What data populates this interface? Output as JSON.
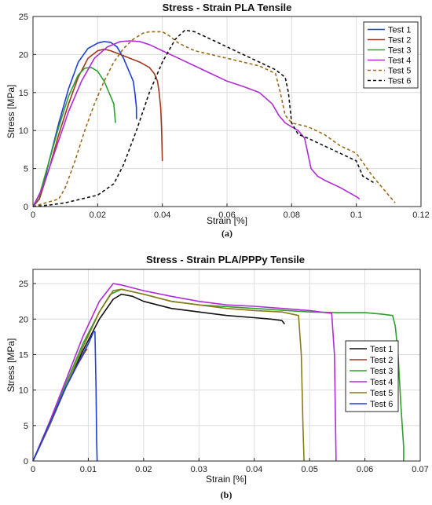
{
  "chart_data": [
    {
      "type": "line",
      "title": "Stress - Strain PLA Tensile",
      "xlabel": "Strain [%]",
      "ylabel": "Stress [MPa]",
      "caption": "(a)",
      "xlim": [
        0,
        0.12
      ],
      "ylim": [
        0,
        25
      ],
      "xticks": [
        0,
        0.02,
        0.04,
        0.06,
        0.08,
        0.1,
        0.12
      ],
      "xtick_labels": [
        "0",
        "0.02",
        "0.04",
        "0.06",
        "0.08",
        "0.1",
        "0.12"
      ],
      "yticks": [
        0,
        5,
        10,
        15,
        20,
        25
      ],
      "ytick_labels": [
        "0",
        "5",
        "10",
        "15",
        "20",
        "25"
      ],
      "grid": true,
      "legend_position": "top-right",
      "series": [
        {
          "name": "Test 1",
          "color": "#1f3fd1",
          "dash": "solid",
          "x": [
            0,
            0.001,
            0.002,
            0.003,
            0.005,
            0.008,
            0.011,
            0.014,
            0.017,
            0.02,
            0.022,
            0.024,
            0.026,
            0.028,
            0.029,
            0.03,
            0.031,
            0.0315,
            0.032,
            0.032
          ],
          "y": [
            0,
            0.5,
            1.0,
            2.5,
            6.0,
            11.0,
            15.5,
            19.0,
            20.8,
            21.5,
            21.7,
            21.6,
            21.0,
            19.5,
            18.5,
            17.5,
            16.5,
            15.0,
            13.0,
            11.5
          ]
        },
        {
          "name": "Test 2",
          "color": "#a0361c",
          "dash": "solid",
          "x": [
            0,
            0.002,
            0.005,
            0.008,
            0.011,
            0.014,
            0.017,
            0.02,
            0.022,
            0.024,
            0.027,
            0.03,
            0.033,
            0.036,
            0.0375,
            0.0385,
            0.039,
            0.0395,
            0.0398,
            0.04
          ],
          "y": [
            0,
            1.0,
            5.0,
            9.5,
            13.5,
            17.0,
            19.5,
            20.5,
            20.7,
            20.5,
            20.0,
            19.5,
            19.0,
            18.3,
            17.5,
            16.5,
            15.0,
            13.0,
            10.0,
            6.0
          ]
        },
        {
          "name": "Test 3",
          "color": "#2ca02c",
          "dash": "solid",
          "x": [
            0,
            0.002,
            0.005,
            0.008,
            0.011,
            0.014,
            0.016,
            0.018,
            0.02,
            0.022,
            0.023,
            0.024,
            0.025,
            0.0255
          ],
          "y": [
            0,
            1.5,
            6.0,
            10.5,
            14.5,
            17.3,
            18.2,
            18.3,
            17.8,
            16.5,
            15.5,
            14.5,
            13.5,
            11.0
          ]
        },
        {
          "name": "Test 4",
          "color": "#b02bd6",
          "dash": "solid",
          "x": [
            0,
            0.003,
            0.007,
            0.011,
            0.015,
            0.019,
            0.023,
            0.027,
            0.03,
            0.033,
            0.036,
            0.04,
            0.045,
            0.05,
            0.055,
            0.06,
            0.065,
            0.07,
            0.074,
            0.076,
            0.078,
            0.08,
            0.082,
            0.084,
            0.085,
            0.086,
            0.088,
            0.09,
            0.095,
            0.1,
            0.101
          ],
          "y": [
            0,
            2.5,
            7.5,
            12.5,
            16.5,
            19.5,
            21.0,
            21.7,
            21.8,
            21.7,
            21.3,
            20.5,
            19.5,
            18.5,
            17.5,
            16.5,
            15.8,
            15.0,
            13.5,
            12.0,
            11.0,
            10.5,
            10.0,
            9.0,
            7.0,
            5.0,
            4.0,
            3.5,
            2.5,
            1.3,
            1.0
          ]
        },
        {
          "name": "Test 5",
          "color": "#9a6a1a",
          "dash": "4,3",
          "x": [
            0,
            0.004,
            0.008,
            0.01,
            0.013,
            0.016,
            0.019,
            0.022,
            0.025,
            0.028,
            0.031,
            0.034,
            0.036,
            0.038,
            0.04,
            0.042,
            0.045,
            0.05,
            0.055,
            0.06,
            0.065,
            0.07,
            0.075,
            0.0765,
            0.078,
            0.08,
            0.085,
            0.09,
            0.095,
            0.1,
            0.105,
            0.11,
            0.112
          ],
          "y": [
            0,
            0.5,
            1.0,
            2.5,
            6.0,
            10.0,
            13.5,
            16.5,
            19.0,
            20.8,
            22.0,
            22.8,
            23.0,
            23.0,
            23.0,
            22.5,
            21.5,
            20.5,
            20.0,
            19.5,
            19.0,
            18.5,
            17.5,
            15.0,
            12.0,
            11.0,
            10.5,
            9.5,
            8.0,
            7.0,
            4.0,
            1.5,
            0.5
          ]
        },
        {
          "name": "Test 6",
          "color": "#111111",
          "dash": "4,3",
          "x": [
            0,
            0.005,
            0.01,
            0.015,
            0.02,
            0.025,
            0.028,
            0.032,
            0.036,
            0.04,
            0.044,
            0.047,
            0.05,
            0.055,
            0.06,
            0.065,
            0.07,
            0.075,
            0.078,
            0.079,
            0.08,
            0.082,
            0.085,
            0.09,
            0.095,
            0.1,
            0.102,
            0.104,
            0.106
          ],
          "y": [
            0,
            0.2,
            0.5,
            1.0,
            1.5,
            3.0,
            5.5,
            10.0,
            15.0,
            19.0,
            22.0,
            23.2,
            23.0,
            22.0,
            21.0,
            20.0,
            19.0,
            18.0,
            17.0,
            15.0,
            11.0,
            9.5,
            9.0,
            8.0,
            7.0,
            6.0,
            4.0,
            3.5,
            3.0
          ]
        }
      ]
    },
    {
      "type": "line",
      "title": "Stress - Strain PLA/PPPy Tensile",
      "xlabel": "Strain [%]",
      "ylabel": "Stress [MPa]",
      "caption": "(b)",
      "xlim": [
        0,
        0.07
      ],
      "ylim": [
        0,
        27
      ],
      "xticks": [
        0,
        0.01,
        0.02,
        0.03,
        0.04,
        0.05,
        0.06,
        0.07
      ],
      "xtick_labels": [
        "0",
        "0.01",
        "0.02",
        "0.03",
        "0.04",
        "0.05",
        "0.06",
        "0.07"
      ],
      "yticks": [
        0,
        5,
        10,
        15,
        20,
        25
      ],
      "ytick_labels": [
        "0",
        "5",
        "10",
        "15",
        "20",
        "25"
      ],
      "grid": true,
      "legend_position": "right",
      "series": [
        {
          "name": "Test 1",
          "color": "#111111",
          "dash": "solid",
          "x": [
            0,
            0.003,
            0.006,
            0.009,
            0.012,
            0.0145,
            0.016,
            0.018,
            0.02,
            0.025,
            0.03,
            0.035,
            0.04,
            0.043,
            0.045,
            0.0455
          ],
          "y": [
            0,
            5.0,
            10.5,
            15.5,
            20.0,
            22.8,
            23.5,
            23.2,
            22.5,
            21.5,
            21.0,
            20.5,
            20.2,
            20.0,
            19.8,
            19.3
          ]
        },
        {
          "name": "Test 2",
          "color": "#a0361c",
          "dash": "solid",
          "x": [
            0,
            0.002,
            0.004,
            0.006,
            0.008,
            0.0095,
            0.0098
          ],
          "y": [
            0,
            3.5,
            7.0,
            10.5,
            13.5,
            15.5,
            15.8
          ]
        },
        {
          "name": "Test 3",
          "color": "#2ca02c",
          "dash": "solid",
          "x": [
            0,
            0.003,
            0.006,
            0.009,
            0.012,
            0.014,
            0.016,
            0.02,
            0.025,
            0.03,
            0.04,
            0.05,
            0.055,
            0.06,
            0.063,
            0.065,
            0.0655,
            0.066,
            0.0665,
            0.067,
            0.067
          ],
          "y": [
            0,
            5.5,
            11.0,
            16.5,
            21.0,
            23.5,
            24.2,
            23.5,
            22.5,
            22.0,
            21.5,
            21.0,
            20.9,
            20.9,
            20.7,
            20.5,
            19.0,
            15.0,
            8.0,
            2.0,
            0
          ]
        },
        {
          "name": "Test 4",
          "color": "#b02bd6",
          "dash": "solid",
          "x": [
            0,
            0.003,
            0.006,
            0.009,
            0.012,
            0.0145,
            0.016,
            0.02,
            0.025,
            0.03,
            0.035,
            0.04,
            0.045,
            0.05,
            0.054,
            0.0545,
            0.0547,
            0.0548
          ],
          "y": [
            0,
            5.5,
            11.5,
            17.5,
            22.5,
            25.0,
            24.8,
            24.0,
            23.2,
            22.5,
            22.0,
            21.8,
            21.5,
            21.2,
            20.8,
            15.0,
            5.0,
            0
          ]
        },
        {
          "name": "Test 5",
          "color": "#8a7a1a",
          "dash": "solid",
          "x": [
            0,
            0.003,
            0.006,
            0.009,
            0.012,
            0.0145,
            0.016,
            0.02,
            0.025,
            0.03,
            0.035,
            0.04,
            0.045,
            0.048,
            0.0485,
            0.0488,
            0.049
          ],
          "y": [
            0,
            5.0,
            10.5,
            16.0,
            21.0,
            24.0,
            24.2,
            23.5,
            22.5,
            22.0,
            21.5,
            21.2,
            21.0,
            20.5,
            15.0,
            5.0,
            0
          ]
        },
        {
          "name": "Test 6",
          "color": "#1f3fd1",
          "dash": "solid",
          "x": [
            0,
            0.002,
            0.004,
            0.006,
            0.008,
            0.01,
            0.011,
            0.0112,
            0.0114,
            0.0115,
            0.0116
          ],
          "y": [
            0,
            3.5,
            7.0,
            10.5,
            13.5,
            16.5,
            18.3,
            18.2,
            10.0,
            3.0,
            0
          ]
        }
      ]
    }
  ]
}
